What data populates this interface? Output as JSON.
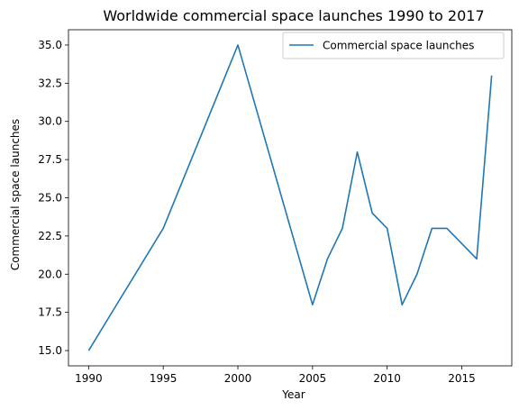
{
  "chart_data": {
    "type": "line",
    "title": "Worldwide commercial space launches 1990 to 2017",
    "xlabel": "Year",
    "ylabel": "Commercial space launches",
    "xlim": [
      1988.65,
      2018.35
    ],
    "ylim": [
      14.0,
      36.0
    ],
    "x_ticks": [
      1990,
      1995,
      2000,
      2005,
      2010,
      2015
    ],
    "y_ticks": [
      15.0,
      17.5,
      20.0,
      22.5,
      25.0,
      27.5,
      30.0,
      32.5,
      35.0
    ],
    "y_tick_labels": [
      "15.0",
      "17.5",
      "20.0",
      "22.5",
      "25.0",
      "27.5",
      "30.0",
      "32.5",
      "35.0"
    ],
    "grid": false,
    "legend_position": "top-right",
    "series": [
      {
        "name": "Commercial space launches",
        "color": "#1f77b4",
        "x": [
          1990,
          1995,
          2000,
          2005,
          2006,
          2007,
          2008,
          2009,
          2010,
          2011,
          2012,
          2013,
          2014,
          2016,
          2017
        ],
        "y": [
          15,
          23,
          35,
          18,
          21,
          23,
          28,
          24,
          23,
          18,
          20,
          23,
          23,
          21,
          33
        ]
      }
    ]
  }
}
